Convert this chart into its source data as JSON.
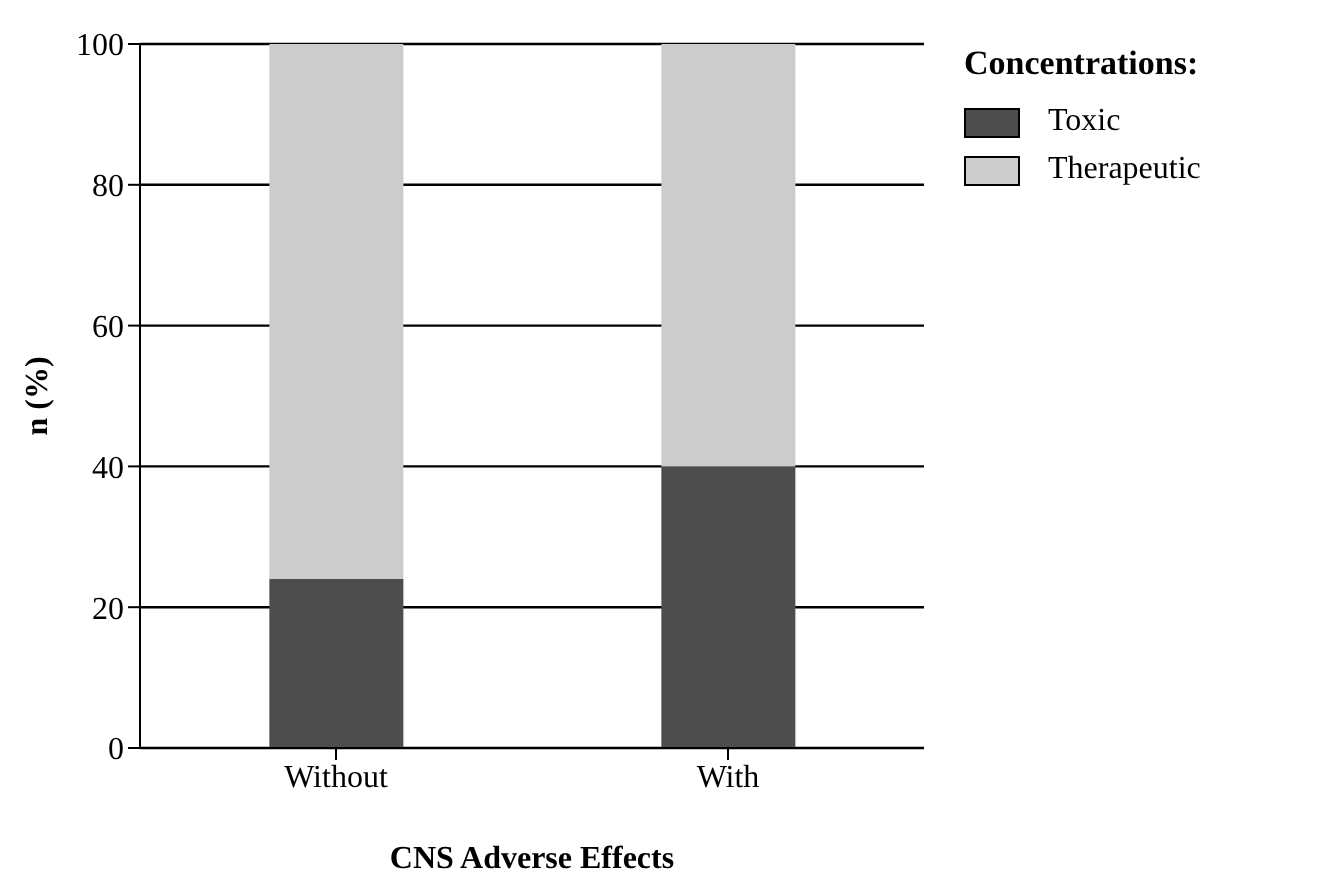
{
  "chart_data": {
    "type": "bar",
    "stacked": true,
    "xlabel": "CNS Adverse Effects",
    "ylabel": "n (%)",
    "legend_title": "Concentrations:",
    "categories": [
      "Without",
      "With"
    ],
    "series": [
      {
        "name": "Toxic",
        "color": "#4d4d4d",
        "values": [
          24,
          40
        ]
      },
      {
        "name": "Therapeutic",
        "color": "#cccccc",
        "values": [
          76,
          60
        ]
      }
    ],
    "ylim": [
      0,
      100
    ],
    "yticks": [
      0,
      20,
      40,
      60,
      80,
      100
    ],
    "grid": "y",
    "legend": "top right"
  }
}
